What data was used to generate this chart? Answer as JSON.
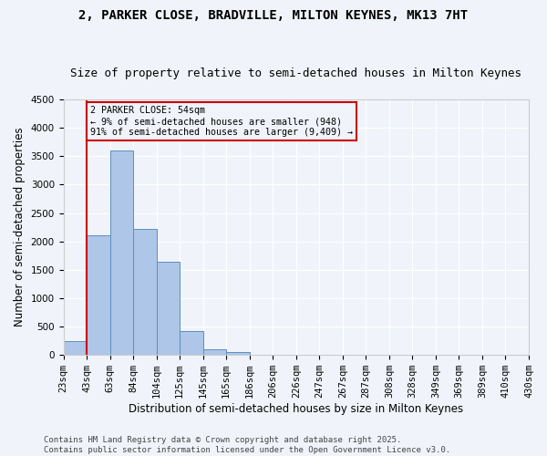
{
  "title": "2, PARKER CLOSE, BRADVILLE, MILTON KEYNES, MK13 7HT",
  "subtitle": "Size of property relative to semi-detached houses in Milton Keynes",
  "xlabel": "Distribution of semi-detached houses by size in Milton Keynes",
  "ylabel": "Number of semi-detached properties",
  "bin_labels": [
    "23sqm",
    "43sqm",
    "63sqm",
    "84sqm",
    "104sqm",
    "125sqm",
    "145sqm",
    "165sqm",
    "186sqm",
    "206sqm",
    "226sqm",
    "247sqm",
    "267sqm",
    "287sqm",
    "308sqm",
    "328sqm",
    "349sqm",
    "369sqm",
    "389sqm",
    "410sqm",
    "430sqm"
  ],
  "bar_values": [
    250,
    2100,
    3600,
    2220,
    1640,
    420,
    100,
    45,
    0,
    0,
    0,
    0,
    0,
    0,
    0,
    0,
    0,
    0,
    0,
    0
  ],
  "bar_color": "#aec6e8",
  "bar_edge_color": "#5a8fc0",
  "property_line_x": 1,
  "annotation_text": "2 PARKER CLOSE: 54sqm\n← 9% of semi-detached houses are smaller (948)\n91% of semi-detached houses are larger (9,409) →",
  "annotation_box_color": "#cc0000",
  "ylim": [
    0,
    4500
  ],
  "background_color": "#f0f4fa",
  "grid_color": "#ffffff",
  "footer_text": "Contains HM Land Registry data © Crown copyright and database right 2025.\nContains public sector information licensed under the Open Government Licence v3.0.",
  "title_fontsize": 10,
  "subtitle_fontsize": 9,
  "axis_label_fontsize": 8.5,
  "tick_fontsize": 7.5,
  "footer_fontsize": 6.5,
  "num_bins": 20
}
